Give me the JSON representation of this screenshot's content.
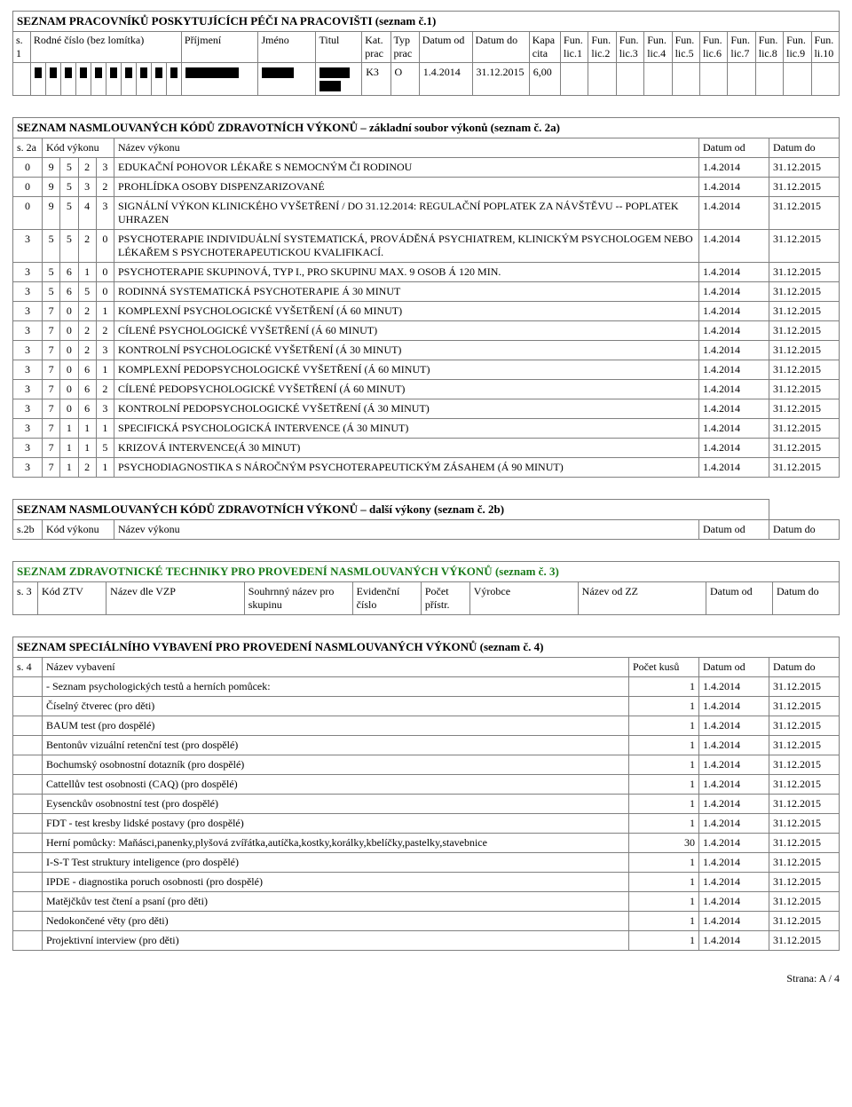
{
  "t1": {
    "title": "SEZNAM PRACOVNÍKŮ POSKYTUJÍCÍCH PÉČI NA PRACOVIŠTI (seznam č.1)",
    "headers": {
      "s1a": "s. 1",
      "rodne": "Rodné číslo (bez lomítka)",
      "prijmeni": "Příjmení",
      "jmeno": "Jméno",
      "titul": "Titul",
      "katprac": "Kat. prac",
      "typprac": "Typ prac",
      "datumod": "Datum od",
      "datumdo": "Datum do",
      "kapacita": "Kapa cita",
      "l1": "Fun. lic.1",
      "l2": "Fun. lic.2",
      "l3": "Fun. lic.3",
      "l4": "Fun. lic.4",
      "l5": "Fun. lic.5",
      "l6": "Fun. lic.6",
      "l7": "Fun. lic.7",
      "l8": "Fun. lic.8",
      "l9": "Fun. lic.9",
      "l10": "Fun. li.10"
    },
    "row": {
      "kat": "K3",
      "typ": "O",
      "od": "1.4.2014",
      "do": "31.12.2015",
      "kapa": "6,00"
    }
  },
  "t2a": {
    "title": "SEZNAM NASMLOUVANÝCH KÓDŮ ZDRAVOTNÍCH VÝKONŮ – základní soubor výkonů (seznam č. 2a)",
    "headers": {
      "s2a": "s. 2a",
      "kod": "Kód výkonu",
      "nazev": "Název výkonu",
      "od": "Datum od",
      "do": "Datum do"
    },
    "rows": [
      {
        "c": [
          "0",
          "9",
          "5",
          "2",
          "3"
        ],
        "n": "EDUKAČNÍ POHOVOR LÉKAŘE S NEMOCNÝM ČI RODINOU",
        "od": "1.4.2014",
        "do": "31.12.2015"
      },
      {
        "c": [
          "0",
          "9",
          "5",
          "3",
          "2"
        ],
        "n": "PROHLÍDKA OSOBY DISPENZARIZOVANÉ",
        "od": "1.4.2014",
        "do": "31.12.2015"
      },
      {
        "c": [
          "0",
          "9",
          "5",
          "4",
          "3"
        ],
        "n": "SIGNÁLNÍ VÝKON KLINICKÉHO VYŠETŘENÍ / DO 31.12.2014: REGULAČNÍ POPLATEK ZA NÁVŠTĚVU -- POPLATEK UHRAZEN",
        "od": "1.4.2014",
        "do": "31.12.2015"
      },
      {
        "c": [
          "3",
          "5",
          "5",
          "2",
          "0"
        ],
        "n": "PSYCHOTERAPIE INDIVIDUÁLNÍ SYSTEMATICKÁ, PROVÁDĚNÁ PSYCHIATREM, KLINICKÝM PSYCHOLOGEM NEBO LÉKAŘEM S PSYCHOTERAPEUTICKOU KVALIFIKACÍ.",
        "od": "1.4.2014",
        "do": "31.12.2015"
      },
      {
        "c": [
          "3",
          "5",
          "6",
          "1",
          "0"
        ],
        "n": "PSYCHOTERAPIE SKUPINOVÁ, TYP I., PRO SKUPINU MAX. 9 OSOB Á 120 MIN.",
        "od": "1.4.2014",
        "do": "31.12.2015"
      },
      {
        "c": [
          "3",
          "5",
          "6",
          "5",
          "0"
        ],
        "n": "RODINNÁ SYSTEMATICKÁ PSYCHOTERAPIE Á 30 MINUT",
        "od": "1.4.2014",
        "do": "31.12.2015"
      },
      {
        "c": [
          "3",
          "7",
          "0",
          "2",
          "1"
        ],
        "n": "KOMPLEXNÍ PSYCHOLOGICKÉ VYŠETŘENÍ (Á 60 MINUT)",
        "od": "1.4.2014",
        "do": "31.12.2015"
      },
      {
        "c": [
          "3",
          "7",
          "0",
          "2",
          "2"
        ],
        "n": "CÍLENÉ PSYCHOLOGICKÉ VYŠETŘENÍ (Á 60 MINUT)",
        "od": "1.4.2014",
        "do": "31.12.2015"
      },
      {
        "c": [
          "3",
          "7",
          "0",
          "2",
          "3"
        ],
        "n": "KONTROLNÍ PSYCHOLOGICKÉ VYŠETŘENÍ (Á 30 MINUT)",
        "od": "1.4.2014",
        "do": "31.12.2015"
      },
      {
        "c": [
          "3",
          "7",
          "0",
          "6",
          "1"
        ],
        "n": "KOMPLEXNÍ PEDOPSYCHOLOGICKÉ VYŠETŘENÍ (Á 60 MINUT)",
        "od": "1.4.2014",
        "do": "31.12.2015"
      },
      {
        "c": [
          "3",
          "7",
          "0",
          "6",
          "2"
        ],
        "n": "CÍLENÉ PEDOPSYCHOLOGICKÉ VYŠETŘENÍ (Á 60 MINUT)",
        "od": "1.4.2014",
        "do": "31.12.2015"
      },
      {
        "c": [
          "3",
          "7",
          "0",
          "6",
          "3"
        ],
        "n": "KONTROLNÍ PEDOPSYCHOLOGICKÉ VYŠETŘENÍ (Á 30 MINUT)",
        "od": "1.4.2014",
        "do": "31.12.2015"
      },
      {
        "c": [
          "3",
          "7",
          "1",
          "1",
          "1"
        ],
        "n": "SPECIFICKÁ PSYCHOLOGICKÁ INTERVENCE (Á 30 MINUT)",
        "od": "1.4.2014",
        "do": "31.12.2015"
      },
      {
        "c": [
          "3",
          "7",
          "1",
          "1",
          "5"
        ],
        "n": "KRIZOVÁ INTERVENCE(Á 30 MINUT)",
        "od": "1.4.2014",
        "do": "31.12.2015"
      },
      {
        "c": [
          "3",
          "7",
          "1",
          "2",
          "1"
        ],
        "n": "PSYCHODIAGNOSTIKA S NÁROČNÝM PSYCHOTERAPEUTICKÝM ZÁSAHEM (Á 90 MINUT)",
        "od": "1.4.2014",
        "do": "31.12.2015"
      }
    ]
  },
  "t2b": {
    "title": "SEZNAM NASMLOUVANÝCH KÓDŮ ZDRAVOTNÍCH VÝKONŮ – další výkony (seznam č. 2b)",
    "headers": {
      "s2b": "s.2b",
      "kod": "Kód výkonu",
      "nazev": "Název výkonu",
      "od": "Datum od",
      "do": "Datum do"
    }
  },
  "t3": {
    "title": "SEZNAM ZDRAVOTNICKÉ TECHNIKY PRO PROVEDENÍ NASMLOUVANÝCH VÝKONŮ (seznam č. 3)",
    "headers": {
      "s3": "s. 3",
      "kodztv": "Kód ZTV",
      "vzp": "Název dle VZP",
      "souhrn": "Souhrnný název pro skupinu",
      "evid": "Evidenční číslo",
      "pocet": "Počet přístr.",
      "vyrobce": "Výrobce",
      "nazevzz": "Název od ZZ",
      "od": "Datum od",
      "do": "Datum do"
    }
  },
  "t4": {
    "title": "SEZNAM SPECIÁLNÍHO VYBAVENÍ PRO PROVEDENÍ NASMLOUVANÝCH VÝKONŮ (seznam č. 4)",
    "headers": {
      "s4": "s. 4",
      "nazev": "Název vybavení",
      "pocet": "Počet kusů",
      "od": "Datum od",
      "do": "Datum do"
    },
    "rows": [
      {
        "n": "- Seznam psychologických testů a herních pomůcek:",
        "p": "1",
        "od": "1.4.2014",
        "do": "31.12.2015"
      },
      {
        "n": "Číselný čtverec (pro děti)",
        "p": "1",
        "od": "1.4.2014",
        "do": "31.12.2015"
      },
      {
        "n": "BAUM test (pro dospělé)",
        "p": "1",
        "od": "1.4.2014",
        "do": "31.12.2015"
      },
      {
        "n": "Bentonův vizuální retenční test (pro dospělé)",
        "p": "1",
        "od": "1.4.2014",
        "do": "31.12.2015"
      },
      {
        "n": "Bochumský osobnostní dotazník (pro dospělé)",
        "p": "1",
        "od": "1.4.2014",
        "do": "31.12.2015"
      },
      {
        "n": "Cattellův test osobnosti (CAQ) (pro dospělé)",
        "p": "1",
        "od": "1.4.2014",
        "do": "31.12.2015"
      },
      {
        "n": "Eysenckův osobnostní test (pro dospělé)",
        "p": "1",
        "od": "1.4.2014",
        "do": "31.12.2015"
      },
      {
        "n": "FDT - test kresby lidské postavy (pro dospělé)",
        "p": "1",
        "od": "1.4.2014",
        "do": "31.12.2015"
      },
      {
        "n": "Herní pomůcky: Maňásci,panenky,plyšová zvířátka,autíčka,kostky,korálky,kbelíčky,pastelky,stavebnice",
        "p": "30",
        "od": "1.4.2014",
        "do": "31.12.2015"
      },
      {
        "n": "I-S-T Test struktury inteligence (pro dospělé)",
        "p": "1",
        "od": "1.4.2014",
        "do": "31.12.2015"
      },
      {
        "n": "IPDE - diagnostika poruch osobnosti (pro dospělé)",
        "p": "1",
        "od": "1.4.2014",
        "do": "31.12.2015"
      },
      {
        "n": "Matějčkův test čtení a psaní (pro děti)",
        "p": "1",
        "od": "1.4.2014",
        "do": "31.12.2015"
      },
      {
        "n": "Nedokončené věty (pro děti)",
        "p": "1",
        "od": "1.4.2014",
        "do": "31.12.2015"
      },
      {
        "n": "Projektivní interview (pro děti)",
        "p": "1",
        "od": "1.4.2014",
        "do": "31.12.2015"
      }
    ]
  },
  "footer": "Strana: A / 4"
}
